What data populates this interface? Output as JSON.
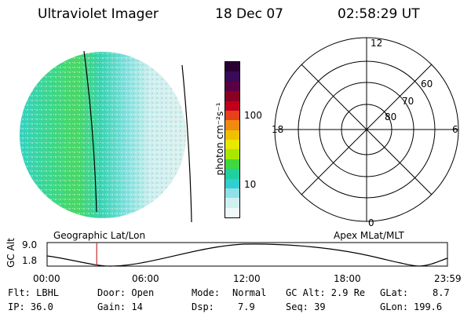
{
  "header": {
    "instrument": "Ultraviolet Imager",
    "date": "18 Dec 07",
    "time": "02:58:29 UT"
  },
  "colorbar": {
    "unit_label": "photon cm⁻²s⁻¹",
    "ticks": [
      "100",
      "10"
    ],
    "colors": [
      "#2a0033",
      "#3a0a5a",
      "#5a0044",
      "#8a0022",
      "#c0001a",
      "#e8401a",
      "#f08a10",
      "#f0c000",
      "#e8e800",
      "#a8e800",
      "#40d840",
      "#20d0a0",
      "#30d0d0",
      "#90e0e8",
      "#d0f0f0",
      "#f0f8f8"
    ]
  },
  "polar": {
    "mlt_labels": [
      "12",
      "18",
      "6",
      "0"
    ],
    "mlat_labels": [
      "60",
      "70",
      "80"
    ]
  },
  "orbit": {
    "left_label": "Geographic Lat/Lon",
    "right_label": "Apex MLat/MLT",
    "axis_label": "GC Alt",
    "y_ticks": [
      "9.0",
      "1.8"
    ],
    "time_ticks": [
      "00:00",
      "06:00",
      "12:00",
      "18:00",
      "23:59"
    ],
    "current_time_fraction": 0.124
  },
  "status": {
    "flt": "Flt: LBHL",
    "ip": "IP: 36.0",
    "door": "Door: Open",
    "gain": "Gain: 14",
    "mode_label": "Mode:",
    "mode_value": "Normal",
    "dsp_label": "Dsp:",
    "dsp_value": "7.9",
    "gcalt": "GC Alt: 2.9 Re",
    "seq": "Seq: 39",
    "glat_label": "GLat:",
    "glat_value": "8.7",
    "glon_label": "GLon:",
    "glon_value": "199.6"
  },
  "colors": {
    "green": "#3cd860",
    "cyan": "#34d0cc",
    "light": "#d8ecec",
    "marker": "#c03030"
  }
}
